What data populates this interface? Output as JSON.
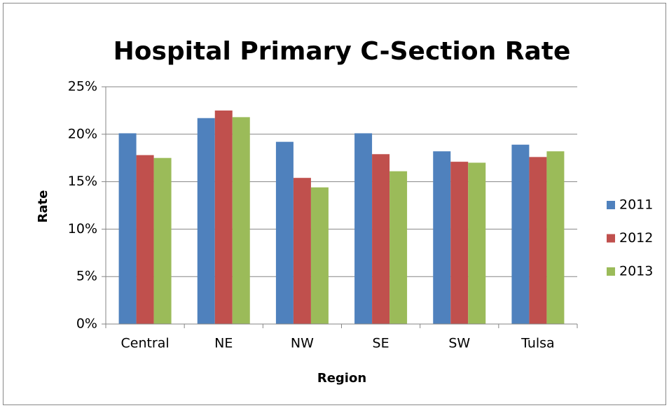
{
  "chart_data": {
    "type": "bar",
    "title": "Hospital Primary C-Section Rate",
    "x_label": "Region",
    "y_label": "Rate",
    "categories": [
      "Central",
      "NE",
      "NW",
      "SE",
      "SW",
      "Tulsa"
    ],
    "series": [
      {
        "name": "2011",
        "color": "#4f81bd",
        "values": [
          20.1,
          21.7,
          19.2,
          20.1,
          18.2,
          18.9
        ]
      },
      {
        "name": "2012",
        "color": "#c0504d",
        "values": [
          17.8,
          22.5,
          15.4,
          17.9,
          17.1,
          17.6
        ]
      },
      {
        "name": "2013",
        "color": "#9bbb59",
        "values": [
          17.5,
          21.8,
          14.4,
          16.1,
          17.0,
          18.2
        ]
      }
    ],
    "ylim": [
      0,
      25
    ],
    "yticks": [
      {
        "value": 0,
        "label": "0%"
      },
      {
        "value": 5,
        "label": "5%"
      },
      {
        "value": 10,
        "label": "10%"
      },
      {
        "value": 15,
        "label": "15%"
      },
      {
        "value": 20,
        "label": "20%"
      },
      {
        "value": 25,
        "label": "25%"
      }
    ],
    "grid": true,
    "legend": "right"
  }
}
